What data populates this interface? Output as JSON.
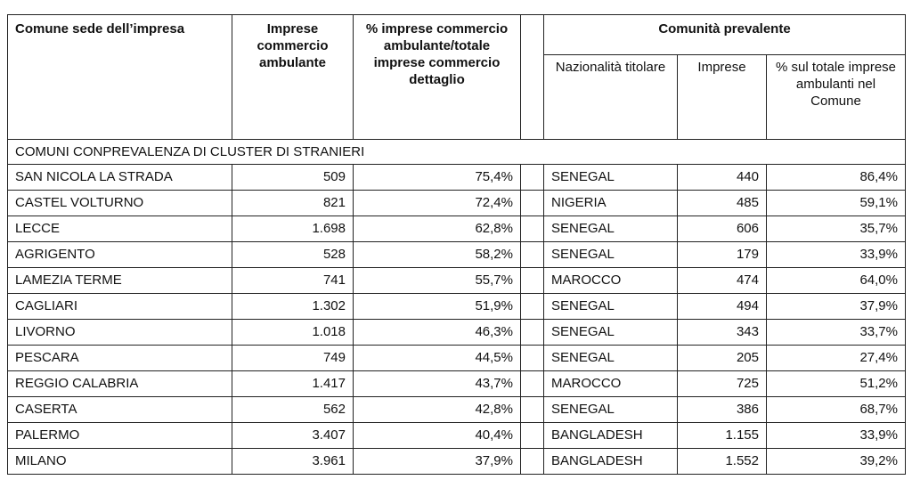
{
  "headers": {
    "comune": "Comune sede dell’impresa",
    "imprese": "Imprese commercio ambulante",
    "percent": "% imprese commercio ambulante/totale imprese commercio dettaglio",
    "comunita": "Comunità prevalente",
    "nazionalita": "Nazionalità titolare",
    "imprese_com": "Imprese",
    "percent_com": "% sul totale imprese ambulanti nel Comune"
  },
  "group_label": "COMUNI CONPREVALENZA DI CLUSTER DI STRANIERI",
  "rows": [
    {
      "comune": "SAN NICOLA LA STRADA",
      "imprese": "509",
      "percent": "75,4%",
      "nazionalita": "SENEGAL",
      "imprese_com": "440",
      "percent_com": "86,4%"
    },
    {
      "comune": "CASTEL VOLTURNO",
      "imprese": "821",
      "percent": "72,4%",
      "nazionalita": "NIGERIA",
      "imprese_com": "485",
      "percent_com": "59,1%"
    },
    {
      "comune": "LECCE",
      "imprese": "1.698",
      "percent": "62,8%",
      "nazionalita": "SENEGAL",
      "imprese_com": "606",
      "percent_com": "35,7%"
    },
    {
      "comune": "AGRIGENTO",
      "imprese": "528",
      "percent": "58,2%",
      "nazionalita": "SENEGAL",
      "imprese_com": "179",
      "percent_com": "33,9%"
    },
    {
      "comune": "LAMEZIA TERME",
      "imprese": "741",
      "percent": "55,7%",
      "nazionalita": "MAROCCO",
      "imprese_com": "474",
      "percent_com": "64,0%"
    },
    {
      "comune": "CAGLIARI",
      "imprese": "1.302",
      "percent": "51,9%",
      "nazionalita": "SENEGAL",
      "imprese_com": "494",
      "percent_com": "37,9%"
    },
    {
      "comune": "LIVORNO",
      "imprese": "1.018",
      "percent": "46,3%",
      "nazionalita": "SENEGAL",
      "imprese_com": "343",
      "percent_com": "33,7%"
    },
    {
      "comune": "PESCARA",
      "imprese": "749",
      "percent": "44,5%",
      "nazionalita": "SENEGAL",
      "imprese_com": "205",
      "percent_com": "27,4%"
    },
    {
      "comune": "REGGIO CALABRIA",
      "imprese": "1.417",
      "percent": "43,7%",
      "nazionalita": "MAROCCO",
      "imprese_com": "725",
      "percent_com": "51,2%"
    },
    {
      "comune": "CASERTA",
      "imprese": "562",
      "percent": "42,8%",
      "nazionalita": "SENEGAL",
      "imprese_com": "386",
      "percent_com": "68,7%"
    },
    {
      "comune": "PALERMO",
      "imprese": "3.407",
      "percent": "40,4%",
      "nazionalita": "BANGLADESH",
      "imprese_com": "1.155",
      "percent_com": "33,9%"
    },
    {
      "comune": "MILANO",
      "imprese": "3.961",
      "percent": "37,9%",
      "nazionalita": "BANGLADESH",
      "imprese_com": "1.552",
      "percent_com": "39,2%"
    }
  ]
}
